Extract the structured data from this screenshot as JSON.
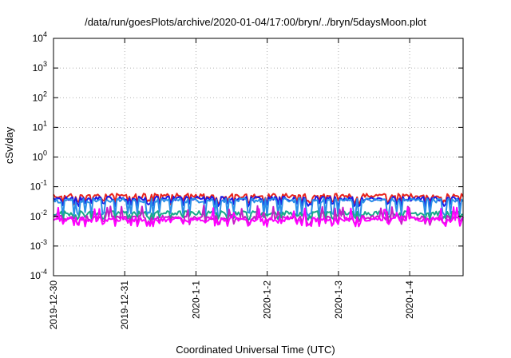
{
  "chart_data": {
    "type": "line",
    "title": "/data/run/goesPlots/archive/2020-01-04/17:00/bryn/../bryn/5daysMoon.plot",
    "xlabel": "Coordinated Universal Time (UTC)",
    "ylabel": "cSv/day",
    "yscale": "log",
    "ylim": [
      0.0001,
      10000
    ],
    "yticks": [
      {
        "value": 10000,
        "base": "10",
        "exp": "4"
      },
      {
        "value": 1000,
        "base": "10",
        "exp": "3"
      },
      {
        "value": 100,
        "base": "10",
        "exp": "2"
      },
      {
        "value": 10,
        "base": "10",
        "exp": "1"
      },
      {
        "value": 1,
        "base": "10",
        "exp": "0"
      },
      {
        "value": 0.1,
        "base": "10",
        "exp": "-1"
      },
      {
        "value": 0.01,
        "base": "10",
        "exp": "-2"
      },
      {
        "value": 0.001,
        "base": "10",
        "exp": "-3"
      },
      {
        "value": 0.0001,
        "base": "10",
        "exp": "-4"
      }
    ],
    "xlim": [
      "2019-12-30",
      "2020-01-04 18:00"
    ],
    "xticks": [
      "2019-12-30",
      "2019-12-31",
      "2020-1-1",
      "2020-1-2",
      "2020-1-3",
      "2020-1-4"
    ],
    "grid": true,
    "series": [
      {
        "color": "#e8231c",
        "base": 0.05,
        "dip": 0.03
      },
      {
        "color": "#1a1ae6",
        "base": 0.04,
        "dip": 0.025
      },
      {
        "color": "#2a8fe8",
        "base": 0.035,
        "dip": 0.012
      },
      {
        "color": "#19a88a",
        "base": 0.013,
        "dip": 0.009
      },
      {
        "color": "#c81ec8",
        "base": 0.009,
        "dip": 0.006
      },
      {
        "color": "#ff00ff",
        "base": 0.008,
        "dip": 0.0055
      }
    ]
  }
}
